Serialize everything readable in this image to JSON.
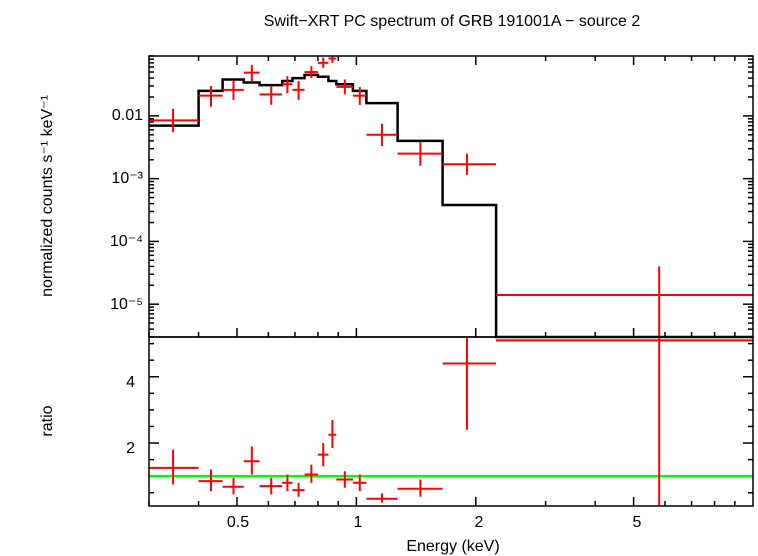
{
  "chart_data": [
    {
      "panel": "spectrum",
      "type": "line",
      "title": "Swift−XRT PC spectrum of GRB 191001A − source 2",
      "ylabel": "normalized counts s⁻¹ keV⁻¹",
      "xlabel": "",
      "x_scale": "log",
      "y_scale": "log",
      "xlim": [
        0.3,
        10
      ],
      "ylim": [
        3e-06,
        0.09
      ],
      "y_tick_labels": [
        "0.01",
        "10⁻³",
        "10⁻⁴",
        "10⁻⁵"
      ],
      "series": [
        {
          "kind": "data",
          "color": "#ff0000",
          "points": [
            {
              "x": 0.345,
              "xlo": 0.3,
              "xhi": 0.4,
              "y": 0.0085,
              "ylo": 0.0055,
              "yhi": 0.013
            },
            {
              "x": 0.43,
              "xlo": 0.4,
              "xhi": 0.46,
              "y": 0.021,
              "ylo": 0.014,
              "yhi": 0.03
            },
            {
              "x": 0.49,
              "xlo": 0.46,
              "xhi": 0.52,
              "y": 0.026,
              "ylo": 0.018,
              "yhi": 0.037
            },
            {
              "x": 0.545,
              "xlo": 0.52,
              "xhi": 0.57,
              "y": 0.049,
              "ylo": 0.036,
              "yhi": 0.065
            },
            {
              "x": 0.61,
              "xlo": 0.57,
              "xhi": 0.65,
              "y": 0.022,
              "ylo": 0.015,
              "yhi": 0.03
            },
            {
              "x": 0.67,
              "xlo": 0.65,
              "xhi": 0.69,
              "y": 0.032,
              "ylo": 0.023,
              "yhi": 0.043
            },
            {
              "x": 0.715,
              "xlo": 0.69,
              "xhi": 0.74,
              "y": 0.026,
              "ylo": 0.018,
              "yhi": 0.036
            },
            {
              "x": 0.77,
              "xlo": 0.74,
              "xhi": 0.8,
              "y": 0.05,
              "ylo": 0.04,
              "yhi": 0.062
            },
            {
              "x": 0.825,
              "xlo": 0.8,
              "xhi": 0.85,
              "y": 0.07,
              "ylo": 0.058,
              "yhi": 0.085
            },
            {
              "x": 0.87,
              "xlo": 0.85,
              "xhi": 0.89,
              "y": 0.082,
              "ylo": 0.07,
              "yhi": 0.09
            },
            {
              "x": 0.935,
              "xlo": 0.89,
              "xhi": 0.98,
              "y": 0.029,
              "ylo": 0.022,
              "yhi": 0.038
            },
            {
              "x": 1.02,
              "xlo": 0.98,
              "xhi": 1.06,
              "y": 0.021,
              "ylo": 0.015,
              "yhi": 0.029
            },
            {
              "x": 1.16,
              "xlo": 1.06,
              "xhi": 1.27,
              "y": 0.005,
              "ylo": 0.0033,
              "yhi": 0.0075
            },
            {
              "x": 1.45,
              "xlo": 1.27,
              "xhi": 1.65,
              "y": 0.0025,
              "ylo": 0.0016,
              "yhi": 0.0038
            },
            {
              "x": 1.9,
              "xlo": 1.65,
              "xhi": 2.25,
              "y": 0.0017,
              "ylo": 0.00115,
              "yhi": 0.0025
            },
            {
              "x": 5.8,
              "xlo": 2.25,
              "xhi": 10,
              "y": 1.4e-05,
              "ylo": 3e-06,
              "yhi": 4e-05
            }
          ]
        },
        {
          "kind": "model",
          "color": "#000000",
          "steps": [
            {
              "xlo": 0.3,
              "xhi": 0.4,
              "y": 0.007
            },
            {
              "xlo": 0.4,
              "xhi": 0.46,
              "y": 0.025
            },
            {
              "xlo": 0.46,
              "xhi": 0.52,
              "y": 0.038
            },
            {
              "xlo": 0.52,
              "xhi": 0.57,
              "y": 0.034
            },
            {
              "xlo": 0.57,
              "xhi": 0.65,
              "y": 0.031
            },
            {
              "xlo": 0.65,
              "xhi": 0.69,
              "y": 0.036
            },
            {
              "xlo": 0.69,
              "xhi": 0.74,
              "y": 0.04
            },
            {
              "xlo": 0.74,
              "xhi": 0.8,
              "y": 0.045
            },
            {
              "xlo": 0.8,
              "xhi": 0.85,
              "y": 0.042
            },
            {
              "xlo": 0.85,
              "xhi": 0.89,
              "y": 0.036
            },
            {
              "xlo": 0.89,
              "xhi": 0.98,
              "y": 0.032
            },
            {
              "xlo": 0.98,
              "xhi": 1.06,
              "y": 0.025
            },
            {
              "xlo": 1.06,
              "xhi": 1.27,
              "y": 0.016
            },
            {
              "xlo": 1.27,
              "xhi": 1.65,
              "y": 0.004
            },
            {
              "xlo": 1.65,
              "xhi": 2.25,
              "y": 0.00038
            },
            {
              "xlo": 2.25,
              "xhi": 10,
              "y": 1e-06
            }
          ]
        }
      ]
    },
    {
      "panel": "ratio",
      "type": "scatter",
      "ylabel": "ratio",
      "xlabel": "Energy (keV)",
      "x_scale": "log",
      "y_scale": "linear",
      "xlim": [
        0.3,
        10
      ],
      "ylim": [
        0.1,
        5.2
      ],
      "x_tick_labels": [
        {
          "value": 0.5,
          "label": "0.5"
        },
        {
          "value": 1,
          "label": "1"
        },
        {
          "value": 2,
          "label": "2"
        },
        {
          "value": 5,
          "label": "5"
        }
      ],
      "y_tick_labels": [
        {
          "value": 2,
          "label": "2"
        },
        {
          "value": 4,
          "label": "4"
        }
      ],
      "reference_line": {
        "y": 1,
        "color": "#00ff00"
      },
      "series": [
        {
          "kind": "data",
          "color": "#ff0000",
          "points": [
            {
              "x": 0.345,
              "xlo": 0.3,
              "xhi": 0.4,
              "y": 1.25,
              "ylo": 0.75,
              "yhi": 1.8
            },
            {
              "x": 0.43,
              "xlo": 0.4,
              "xhi": 0.46,
              "y": 0.85,
              "ylo": 0.55,
              "yhi": 1.2
            },
            {
              "x": 0.49,
              "xlo": 0.46,
              "xhi": 0.52,
              "y": 0.68,
              "ylo": 0.45,
              "yhi": 0.95
            },
            {
              "x": 0.545,
              "xlo": 0.52,
              "xhi": 0.57,
              "y": 1.45,
              "ylo": 1.05,
              "yhi": 1.9
            },
            {
              "x": 0.61,
              "xlo": 0.57,
              "xhi": 0.65,
              "y": 0.7,
              "ylo": 0.45,
              "yhi": 0.95
            },
            {
              "x": 0.67,
              "xlo": 0.65,
              "xhi": 0.69,
              "y": 0.8,
              "ylo": 0.55,
              "yhi": 1.05
            },
            {
              "x": 0.715,
              "xlo": 0.69,
              "xhi": 0.74,
              "y": 0.58,
              "ylo": 0.38,
              "yhi": 0.8
            },
            {
              "x": 0.77,
              "xlo": 0.74,
              "xhi": 0.8,
              "y": 1.05,
              "ylo": 0.8,
              "yhi": 1.35
            },
            {
              "x": 0.825,
              "xlo": 0.8,
              "xhi": 0.85,
              "y": 1.65,
              "ylo": 1.3,
              "yhi": 2.0
            },
            {
              "x": 0.87,
              "xlo": 0.85,
              "xhi": 0.89,
              "y": 2.25,
              "ylo": 1.85,
              "yhi": 2.7
            },
            {
              "x": 0.935,
              "xlo": 0.89,
              "xhi": 0.98,
              "y": 0.9,
              "ylo": 0.65,
              "yhi": 1.15
            },
            {
              "x": 1.02,
              "xlo": 0.98,
              "xhi": 1.06,
              "y": 0.8,
              "ylo": 0.55,
              "yhi": 1.05
            },
            {
              "x": 1.16,
              "xlo": 1.06,
              "xhi": 1.27,
              "y": 0.32,
              "ylo": 0.2,
              "yhi": 0.48
            },
            {
              "x": 1.45,
              "xlo": 1.27,
              "xhi": 1.65,
              "y": 0.62,
              "ylo": 0.38,
              "yhi": 0.9
            },
            {
              "x": 1.9,
              "xlo": 1.65,
              "xhi": 2.25,
              "y": 4.4,
              "ylo": 2.4,
              "yhi": 6.0
            },
            {
              "x": 5.8,
              "xlo": 2.25,
              "xhi": 10,
              "y": 5.1,
              "ylo": 0.1,
              "yhi": 6.0
            }
          ]
        }
      ]
    }
  ]
}
